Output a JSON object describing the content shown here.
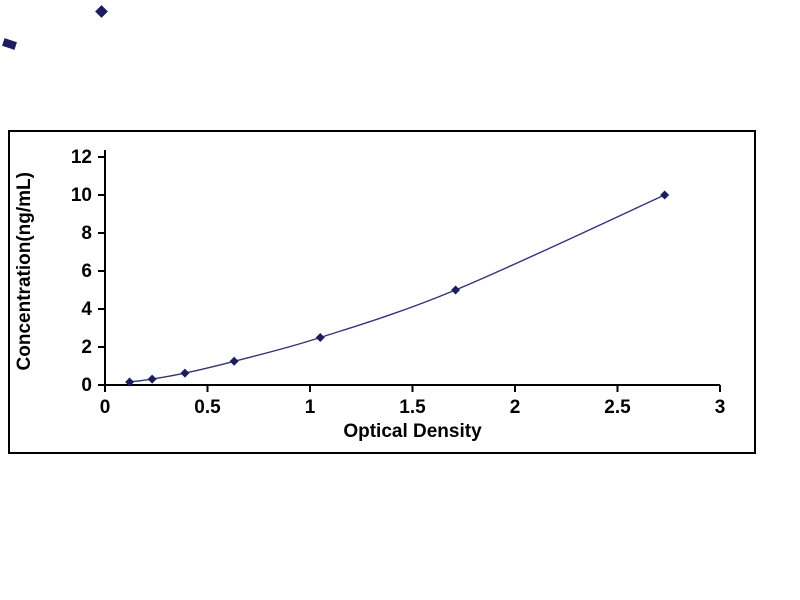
{
  "chart_data": {
    "type": "line",
    "title": "",
    "xlabel": "Optical Density",
    "ylabel": "Concentration(ng/mL)",
    "x": [
      0.12,
      0.23,
      0.39,
      0.63,
      1.05,
      1.71,
      2.73
    ],
    "y": [
      0.156,
      0.312,
      0.625,
      1.25,
      2.5,
      5,
      10
    ],
    "xlim": [
      0,
      3
    ],
    "ylim": [
      0,
      12
    ],
    "xticks": [
      0,
      0.5,
      1,
      1.5,
      2,
      2.5,
      3
    ],
    "xtick_labels": [
      "0",
      "0.5",
      "1",
      "1.5",
      "2",
      "2.5",
      "3"
    ],
    "yticks": [
      0,
      2,
      4,
      6,
      8,
      10,
      12
    ],
    "ytick_labels": [
      "0",
      "2",
      "4",
      "6",
      "8",
      "10",
      "12"
    ],
    "grid": false,
    "legend_position": "none",
    "marker": "diamond",
    "line_color": "#33337a",
    "marker_color": "#1c1c5e",
    "axis_color": "#000000",
    "background_color": "#ffffff"
  }
}
